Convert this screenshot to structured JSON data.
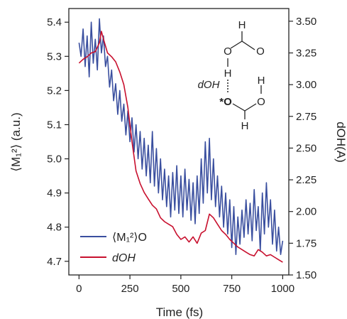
{
  "chart_data": {
    "type": "line",
    "xlabel": "Time (fs)",
    "ylabel_left": "⟨M₁²⟩ (a.u.)",
    "ylabel_right": "dOH(A)",
    "xlim": [
      -50,
      1030
    ],
    "x_ticks": [
      0,
      250,
      500,
      750,
      1000
    ],
    "ylim_left": [
      4.66,
      5.44
    ],
    "y_ticks_left": [
      "4.7",
      "4.8",
      "4.9",
      "5.0",
      "5.1",
      "5.2",
      "5.3",
      "5.4"
    ],
    "ylim_right": [
      1.5,
      3.6
    ],
    "y_ticks_right": [
      "1.50",
      "1.75",
      "2.00",
      "2.25",
      "2.50",
      "2.75",
      "3.00",
      "3.25",
      "3.50"
    ],
    "colors": {
      "moment": "#3a4f9f",
      "distance": "#c8102e"
    },
    "series": [
      {
        "name": "⟨M₁²⟩O",
        "axis": "left",
        "x": [
          0,
          10,
          20,
          30,
          40,
          50,
          60,
          70,
          80,
          90,
          100,
          110,
          120,
          130,
          140,
          150,
          160,
          170,
          180,
          190,
          200,
          210,
          220,
          230,
          240,
          250,
          260,
          270,
          280,
          290,
          300,
          310,
          320,
          330,
          340,
          350,
          360,
          370,
          380,
          390,
          400,
          410,
          420,
          430,
          440,
          450,
          460,
          470,
          480,
          490,
          500,
          510,
          520,
          530,
          540,
          550,
          560,
          570,
          580,
          590,
          600,
          610,
          620,
          630,
          640,
          650,
          660,
          670,
          680,
          690,
          700,
          710,
          720,
          730,
          740,
          750,
          760,
          770,
          780,
          790,
          800,
          810,
          820,
          830,
          840,
          850,
          860,
          870,
          880,
          890,
          900,
          910,
          920,
          930,
          940,
          950,
          960,
          970,
          980,
          990,
          1000
        ],
        "values": [
          5.34,
          5.3,
          5.38,
          5.27,
          5.36,
          5.24,
          5.4,
          5.28,
          5.35,
          5.26,
          5.41,
          5.31,
          5.36,
          5.27,
          5.3,
          5.21,
          5.26,
          5.17,
          5.22,
          5.13,
          5.2,
          5.11,
          5.16,
          5.07,
          5.14,
          5.05,
          5.12,
          5.02,
          5.1,
          5.0,
          5.08,
          4.97,
          5.06,
          4.95,
          5.04,
          4.93,
          5.08,
          4.92,
          5.03,
          4.9,
          5.0,
          4.88,
          4.97,
          4.86,
          4.95,
          4.83,
          4.96,
          4.85,
          4.98,
          4.84,
          4.95,
          4.83,
          4.97,
          4.85,
          4.94,
          4.82,
          4.93,
          4.81,
          4.95,
          4.84,
          5.0,
          4.87,
          5.05,
          4.9,
          5.06,
          4.88,
          5.0,
          4.86,
          4.95,
          4.83,
          4.92,
          4.8,
          4.9,
          4.78,
          4.88,
          4.74,
          4.86,
          4.72,
          4.83,
          4.75,
          4.85,
          4.77,
          4.88,
          4.78,
          4.87,
          4.76,
          4.91,
          4.79,
          4.86,
          4.73,
          4.9,
          4.78,
          4.93,
          4.8,
          4.88,
          4.75,
          4.85,
          4.73,
          4.8,
          4.72,
          4.76
        ]
      },
      {
        "name": "dOH",
        "axis": "right",
        "x": [
          0,
          20,
          40,
          60,
          80,
          100,
          110,
          120,
          140,
          160,
          180,
          200,
          220,
          240,
          260,
          280,
          300,
          320,
          340,
          360,
          380,
          400,
          420,
          440,
          460,
          480,
          500,
          520,
          540,
          560,
          580,
          600,
          620,
          640,
          660,
          680,
          700,
          720,
          740,
          760,
          780,
          800,
          820,
          840,
          860,
          880,
          900,
          920,
          940,
          960,
          980,
          1000
        ],
        "values": [
          3.17,
          3.2,
          3.22,
          3.25,
          3.26,
          3.33,
          3.42,
          3.36,
          3.25,
          3.22,
          3.18,
          3.1,
          3.0,
          2.82,
          2.55,
          2.32,
          2.22,
          2.15,
          2.1,
          2.05,
          2.02,
          1.95,
          1.92,
          1.9,
          1.88,
          1.82,
          1.78,
          1.8,
          1.76,
          1.8,
          1.75,
          1.83,
          1.85,
          1.98,
          1.95,
          1.9,
          1.85,
          1.82,
          1.78,
          1.75,
          1.72,
          1.7,
          1.68,
          1.66,
          1.65,
          1.7,
          1.68,
          1.65,
          1.66,
          1.64,
          1.62,
          1.6
        ]
      }
    ],
    "legend": {
      "placement": "bottom-left",
      "items": [
        {
          "series": "moment",
          "label": "⟨M₁²⟩O"
        },
        {
          "series": "distance",
          "label": "dOH"
        }
      ]
    }
  },
  "molecule": {
    "top_atoms": [
      "H",
      "O",
      "O",
      "H"
    ],
    "bottom_atoms": [
      "*O",
      "H",
      "O",
      "H"
    ],
    "bond_label": "dOH"
  }
}
